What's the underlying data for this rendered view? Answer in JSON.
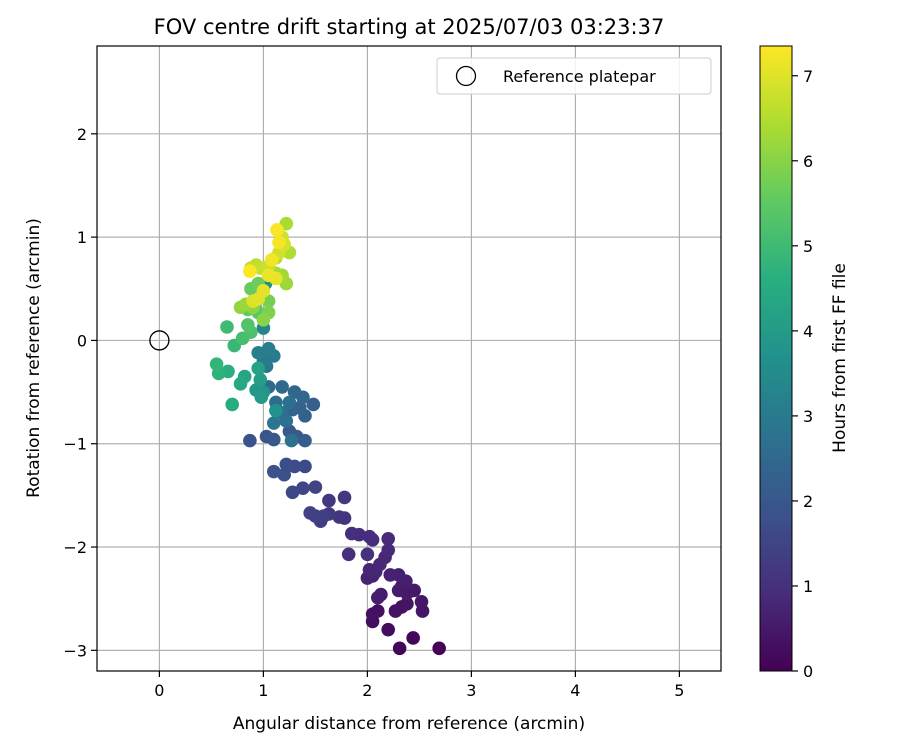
{
  "chart_data": {
    "type": "scatter",
    "title": "FOV centre drift starting at 2025/07/03 03:23:37",
    "xlabel": "Angular distance from reference (arcmin)",
    "ylabel": "Rotation from reference (arcmin)",
    "xlim": [
      -0.6,
      5.4
    ],
    "ylim": [
      -3.2,
      2.85
    ],
    "xticks": [
      0,
      1,
      2,
      3,
      4,
      5
    ],
    "yticks": [
      -3,
      -2,
      -1,
      0,
      1,
      2
    ],
    "grid": true,
    "legend": {
      "position": "top-right",
      "entries": [
        "Reference platepar"
      ]
    },
    "reference_point": {
      "x": 0,
      "y": 0,
      "label": "Reference platepar"
    },
    "colorbar": {
      "label": "Hours from first FF file",
      "colormap": "viridis",
      "range": [
        0,
        7.35
      ],
      "ticks": [
        0,
        1,
        2,
        3,
        4,
        5,
        6,
        7
      ]
    },
    "points": [
      {
        "x": 2.69,
        "y": -2.98,
        "h": 0.05
      },
      {
        "x": 2.31,
        "y": -2.98,
        "h": 0.1
      },
      {
        "x": 2.44,
        "y": -2.88,
        "h": 0.15
      },
      {
        "x": 2.2,
        "y": -2.8,
        "h": 0.2
      },
      {
        "x": 2.05,
        "y": -2.72,
        "h": 0.25
      },
      {
        "x": 2.1,
        "y": -2.62,
        "h": 0.3
      },
      {
        "x": 2.05,
        "y": -2.65,
        "h": 0.32
      },
      {
        "x": 2.27,
        "y": -2.62,
        "h": 0.35
      },
      {
        "x": 2.33,
        "y": -2.58,
        "h": 0.38
      },
      {
        "x": 2.38,
        "y": -2.55,
        "h": 0.4
      },
      {
        "x": 2.53,
        "y": -2.62,
        "h": 0.42
      },
      {
        "x": 2.52,
        "y": -2.53,
        "h": 0.45
      },
      {
        "x": 2.45,
        "y": -2.42,
        "h": 0.48
      },
      {
        "x": 2.38,
        "y": -2.45,
        "h": 0.5
      },
      {
        "x": 2.33,
        "y": -2.38,
        "h": 0.52
      },
      {
        "x": 2.3,
        "y": -2.42,
        "h": 0.55
      },
      {
        "x": 2.13,
        "y": -2.46,
        "h": 0.58
      },
      {
        "x": 2.1,
        "y": -2.49,
        "h": 0.6
      },
      {
        "x": 2.37,
        "y": -2.33,
        "h": 0.62
      },
      {
        "x": 2.3,
        "y": -2.27,
        "h": 0.65
      },
      {
        "x": 2.22,
        "y": -2.27,
        "h": 0.68
      },
      {
        "x": 2.05,
        "y": -2.28,
        "h": 0.7
      },
      {
        "x": 2.0,
        "y": -2.3,
        "h": 0.72
      },
      {
        "x": 2.08,
        "y": -2.24,
        "h": 0.75
      },
      {
        "x": 2.02,
        "y": -2.22,
        "h": 0.78
      },
      {
        "x": 2.12,
        "y": -2.17,
        "h": 0.8
      },
      {
        "x": 2.17,
        "y": -2.1,
        "h": 0.82
      },
      {
        "x": 2.2,
        "y": -2.03,
        "h": 0.85
      },
      {
        "x": 2.2,
        "y": -1.92,
        "h": 0.88
      },
      {
        "x": 2.05,
        "y": -1.93,
        "h": 0.9
      },
      {
        "x": 2.02,
        "y": -1.9,
        "h": 0.92
      },
      {
        "x": 1.92,
        "y": -1.88,
        "h": 0.95
      },
      {
        "x": 1.85,
        "y": -1.87,
        "h": 0.98
      },
      {
        "x": 1.82,
        "y": -2.07,
        "h": 1.0
      },
      {
        "x": 2.0,
        "y": -2.07,
        "h": 1.03
      },
      {
        "x": 1.78,
        "y": -1.72,
        "h": 1.08
      },
      {
        "x": 1.73,
        "y": -1.71,
        "h": 1.12
      },
      {
        "x": 1.78,
        "y": -1.52,
        "h": 1.16
      },
      {
        "x": 1.63,
        "y": -1.55,
        "h": 1.2
      },
      {
        "x": 1.63,
        "y": -1.68,
        "h": 1.25
      },
      {
        "x": 1.55,
        "y": -1.75,
        "h": 1.3
      },
      {
        "x": 1.58,
        "y": -1.7,
        "h": 1.35
      },
      {
        "x": 1.5,
        "y": -1.7,
        "h": 1.4
      },
      {
        "x": 1.45,
        "y": -1.67,
        "h": 1.45
      },
      {
        "x": 1.5,
        "y": -1.42,
        "h": 1.5
      },
      {
        "x": 1.38,
        "y": -1.43,
        "h": 1.55
      },
      {
        "x": 1.28,
        "y": -1.47,
        "h": 1.6
      },
      {
        "x": 1.4,
        "y": -1.22,
        "h": 1.65
      },
      {
        "x": 1.3,
        "y": -1.22,
        "h": 1.7
      },
      {
        "x": 1.22,
        "y": -1.2,
        "h": 1.75
      },
      {
        "x": 1.2,
        "y": -1.3,
        "h": 1.8
      },
      {
        "x": 1.1,
        "y": -1.27,
        "h": 1.85
      },
      {
        "x": 0.87,
        "y": -0.97,
        "h": 1.9
      },
      {
        "x": 1.03,
        "y": -0.93,
        "h": 1.95
      },
      {
        "x": 1.1,
        "y": -0.96,
        "h": 2.0
      },
      {
        "x": 1.25,
        "y": -0.88,
        "h": 2.05
      },
      {
        "x": 1.32,
        "y": -0.93,
        "h": 2.1
      },
      {
        "x": 1.4,
        "y": -0.97,
        "h": 2.15
      },
      {
        "x": 1.48,
        "y": -0.62,
        "h": 2.2
      },
      {
        "x": 1.4,
        "y": -0.73,
        "h": 2.25
      },
      {
        "x": 1.28,
        "y": -0.67,
        "h": 2.3
      },
      {
        "x": 1.35,
        "y": -0.65,
        "h": 2.35
      },
      {
        "x": 1.38,
        "y": -0.55,
        "h": 2.4
      },
      {
        "x": 1.3,
        "y": -0.5,
        "h": 2.45
      },
      {
        "x": 1.18,
        "y": -0.45,
        "h": 2.5
      },
      {
        "x": 1.05,
        "y": -0.45,
        "h": 2.55
      },
      {
        "x": 1.12,
        "y": -0.6,
        "h": 2.6
      },
      {
        "x": 1.18,
        "y": -0.7,
        "h": 2.65
      },
      {
        "x": 1.25,
        "y": -0.6,
        "h": 2.7
      },
      {
        "x": 1.22,
        "y": -0.78,
        "h": 2.75
      },
      {
        "x": 1.27,
        "y": -0.97,
        "h": 2.8
      },
      {
        "x": 1.1,
        "y": -0.8,
        "h": 2.85
      },
      {
        "x": 1.03,
        "y": -0.25,
        "h": 2.9
      },
      {
        "x": 1.05,
        "y": -0.12,
        "h": 2.95
      },
      {
        "x": 1.0,
        "y": -0.2,
        "h": 3.0
      },
      {
        "x": 1.1,
        "y": -0.15,
        "h": 3.05
      },
      {
        "x": 1.05,
        "y": -0.08,
        "h": 3.1
      },
      {
        "x": 0.95,
        "y": -0.12,
        "h": 3.15
      },
      {
        "x": 0.92,
        "y": 0.35,
        "h": 3.2
      },
      {
        "x": 1.0,
        "y": 0.12,
        "h": 3.3
      },
      {
        "x": 1.0,
        "y": 0.22,
        "h": 3.4
      },
      {
        "x": 0.97,
        "y": 0.45,
        "h": 3.5
      },
      {
        "x": 1.02,
        "y": 0.55,
        "h": 3.6
      },
      {
        "x": 1.12,
        "y": -0.68,
        "h": 3.7
      },
      {
        "x": 1.0,
        "y": -0.5,
        "h": 3.8
      },
      {
        "x": 0.93,
        "y": -0.48,
        "h": 3.9
      },
      {
        "x": 0.98,
        "y": -0.55,
        "h": 4.0
      },
      {
        "x": 0.97,
        "y": -0.38,
        "h": 4.1
      },
      {
        "x": 0.95,
        "y": -0.27,
        "h": 4.2
      },
      {
        "x": 0.82,
        "y": -0.35,
        "h": 4.3
      },
      {
        "x": 0.78,
        "y": -0.42,
        "h": 4.4
      },
      {
        "x": 0.7,
        "y": -0.62,
        "h": 4.5
      },
      {
        "x": 0.66,
        "y": -0.3,
        "h": 4.6
      },
      {
        "x": 0.57,
        "y": -0.32,
        "h": 4.7
      },
      {
        "x": 0.55,
        "y": -0.23,
        "h": 4.8
      },
      {
        "x": 0.72,
        "y": -0.05,
        "h": 4.9
      },
      {
        "x": 0.65,
        "y": 0.13,
        "h": 5.0
      },
      {
        "x": 0.8,
        "y": 0.02,
        "h": 5.1
      },
      {
        "x": 0.88,
        "y": 0.08,
        "h": 5.2
      },
      {
        "x": 0.85,
        "y": 0.15,
        "h": 5.3
      },
      {
        "x": 0.95,
        "y": 0.27,
        "h": 5.4
      },
      {
        "x": 0.85,
        "y": 0.3,
        "h": 5.5
      },
      {
        "x": 0.88,
        "y": 0.5,
        "h": 5.6
      },
      {
        "x": 0.95,
        "y": 0.55,
        "h": 5.7
      },
      {
        "x": 1.05,
        "y": 0.38,
        "h": 5.8
      },
      {
        "x": 1.05,
        "y": 0.27,
        "h": 5.9
      },
      {
        "x": 1.0,
        "y": 0.2,
        "h": 6.0
      },
      {
        "x": 0.9,
        "y": 0.32,
        "h": 6.05
      },
      {
        "x": 0.78,
        "y": 0.32,
        "h": 6.1
      },
      {
        "x": 0.83,
        "y": 0.35,
        "h": 6.2
      },
      {
        "x": 1.22,
        "y": 0.55,
        "h": 6.25
      },
      {
        "x": 1.18,
        "y": 0.63,
        "h": 6.3
      },
      {
        "x": 1.12,
        "y": 0.65,
        "h": 6.35
      },
      {
        "x": 1.22,
        "y": 1.13,
        "h": 6.4
      },
      {
        "x": 1.25,
        "y": 0.85,
        "h": 6.45
      },
      {
        "x": 1.18,
        "y": 0.9,
        "h": 6.5
      },
      {
        "x": 1.12,
        "y": 0.8,
        "h": 6.55
      },
      {
        "x": 0.93,
        "y": 0.73,
        "h": 6.6
      },
      {
        "x": 0.88,
        "y": 0.7,
        "h": 6.65
      },
      {
        "x": 0.97,
        "y": 0.7,
        "h": 6.7
      },
      {
        "x": 1.05,
        "y": 0.72,
        "h": 6.75
      },
      {
        "x": 1.18,
        "y": 1.0,
        "h": 6.8
      },
      {
        "x": 1.15,
        "y": 0.85,
        "h": 6.85
      },
      {
        "x": 1.2,
        "y": 0.93,
        "h": 6.9
      },
      {
        "x": 0.9,
        "y": 0.38,
        "h": 6.95
      },
      {
        "x": 0.95,
        "y": 0.4,
        "h": 7.0
      },
      {
        "x": 1.0,
        "y": 0.48,
        "h": 7.05
      },
      {
        "x": 1.12,
        "y": 0.6,
        "h": 7.1
      },
      {
        "x": 1.05,
        "y": 0.63,
        "h": 7.15
      },
      {
        "x": 1.08,
        "y": 0.78,
        "h": 7.2
      },
      {
        "x": 1.15,
        "y": 0.95,
        "h": 7.25
      },
      {
        "x": 1.13,
        "y": 1.07,
        "h": 7.3
      },
      {
        "x": 0.87,
        "y": 0.67,
        "h": 7.35
      }
    ]
  }
}
